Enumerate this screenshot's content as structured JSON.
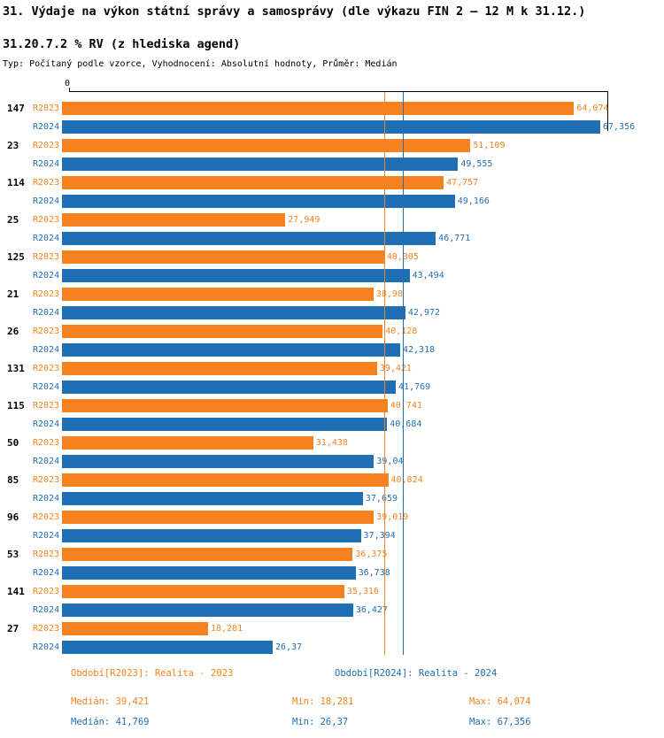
{
  "chart_data": {
    "type": "bar",
    "orientation": "horizontal",
    "title": "31. Výdaje na výkon státní správy a samosprávy (dle výkazu FIN 2 – 12 M k 31.12.)",
    "subtitle": "31.20.7.2 % RV (z hlediska agend)",
    "meta": "Typ: Počítaný podle vzorce, Vyhodnocení: Absolutní hodnoty, Průměr: Medián",
    "xlim": [
      0,
      67.356
    ],
    "axis_zero_label": "0",
    "grid": false,
    "legend_position": "bottom",
    "categories": [
      "147",
      "23",
      "114",
      "25",
      "125",
      "21",
      "26",
      "131",
      "115",
      "50",
      "85",
      "96",
      "53",
      "141",
      "27"
    ],
    "series": [
      {
        "name": "R2023",
        "color": "#f5821f",
        "values": [
          64.074,
          51.109,
          47.757,
          27.949,
          40.305,
          38.98,
          40.128,
          39.421,
          40.741,
          31.438,
          40.824,
          39.019,
          36.375,
          35.316,
          18.281
        ],
        "labels": [
          "64,074",
          "51,109",
          "47,757",
          "27,949",
          "40,305",
          "38,98",
          "40,128",
          "39,421",
          "40,741",
          "31,438",
          "40,824",
          "39,019",
          "36,375",
          "35,316",
          "18,281"
        ]
      },
      {
        "name": "R2024",
        "color": "#1f6fb5",
        "values": [
          67.356,
          49.555,
          49.166,
          46.771,
          43.494,
          42.972,
          42.318,
          41.769,
          40.684,
          39.04,
          37.659,
          37.394,
          36.738,
          36.427,
          26.37
        ],
        "labels": [
          "67,356",
          "49,555",
          "49,166",
          "46,771",
          "43,494",
          "42,972",
          "42,318",
          "41,769",
          "40,684",
          "39,04",
          "37,659",
          "37,394",
          "36,738",
          "36,427",
          "26,37"
        ]
      }
    ],
    "median_lines": [
      {
        "series": "R2023",
        "value": 39.421,
        "color": "#f5821f"
      },
      {
        "series": "R2024",
        "value": 41.769,
        "color": "#1f6fb5"
      }
    ]
  },
  "legend": {
    "r2023": "Období[R2023]: Realita - 2023",
    "r2024": "Období[R2024]: Realita - 2024"
  },
  "stats": {
    "r2023": {
      "median": "Medián: 39,421",
      "min": "Min: 18,281",
      "max": "Max: 64,074"
    },
    "r2024": {
      "median": "Medián: 41,769",
      "min": "Min: 26,37",
      "max": "Max: 67,356"
    }
  }
}
